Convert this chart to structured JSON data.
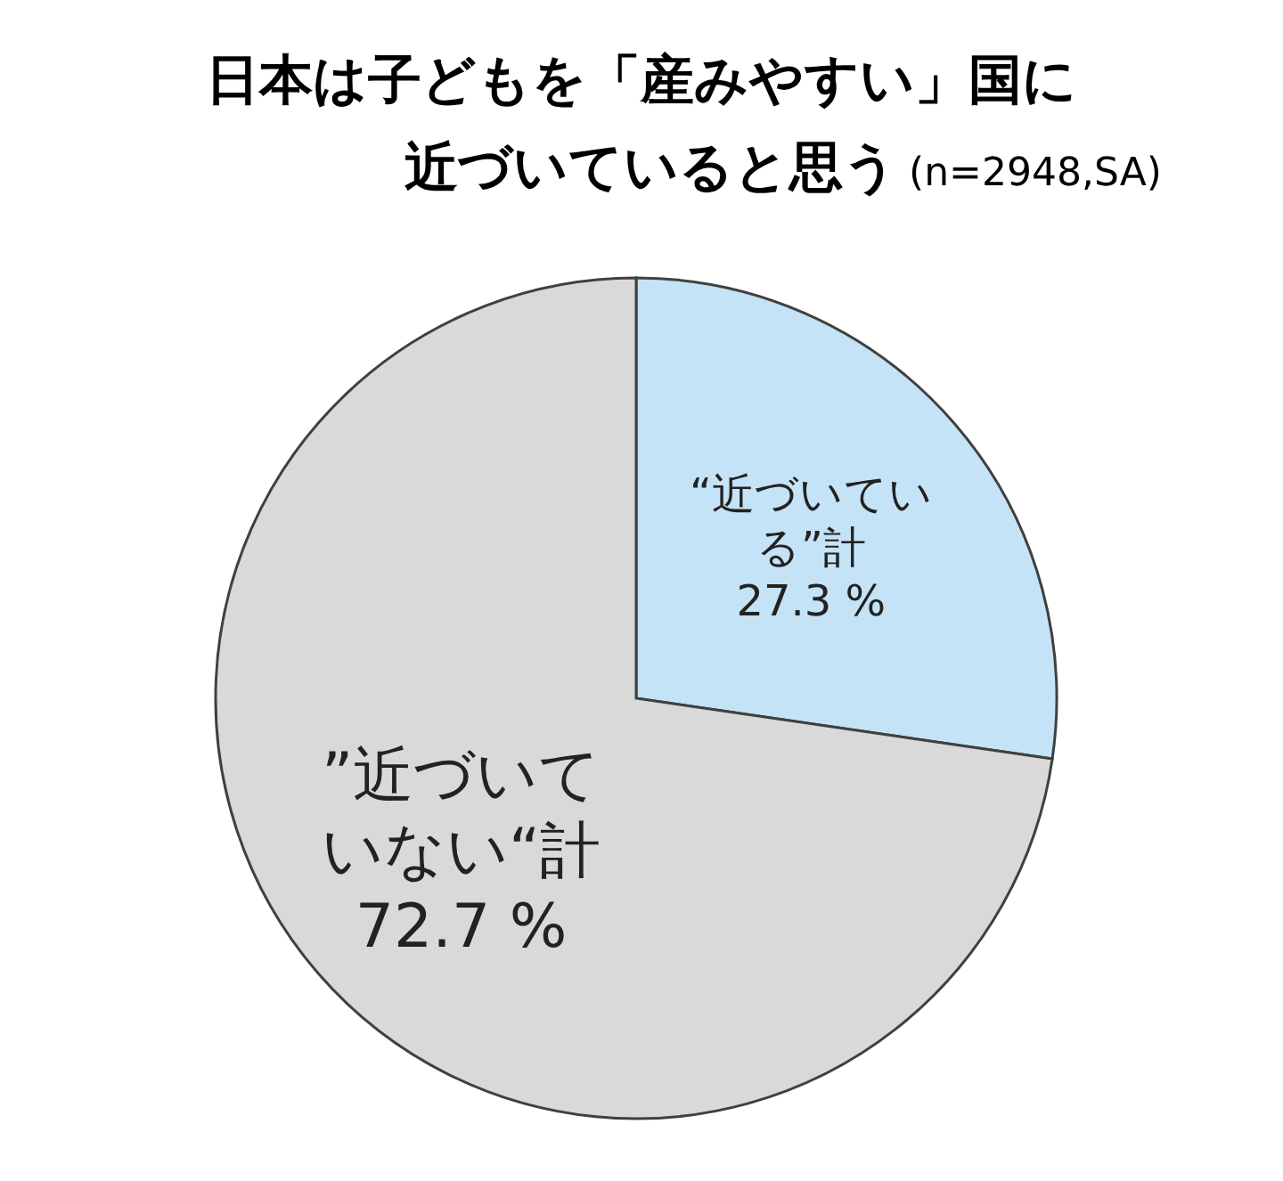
{
  "chart_data": {
    "type": "pie",
    "title": "日本は子どもを「産みやすい」国に近づいていると思う",
    "subtitle": "(n=2948,SA)",
    "categories": [
      "“近づいている”計",
      "”近づいていない“計"
    ],
    "values": [
      27.3,
      72.7
    ],
    "colors": [
      "#c5e3f6",
      "#d9d9d9"
    ],
    "value_labels": [
      "27.3 %",
      "72.7 %"
    ]
  }
}
